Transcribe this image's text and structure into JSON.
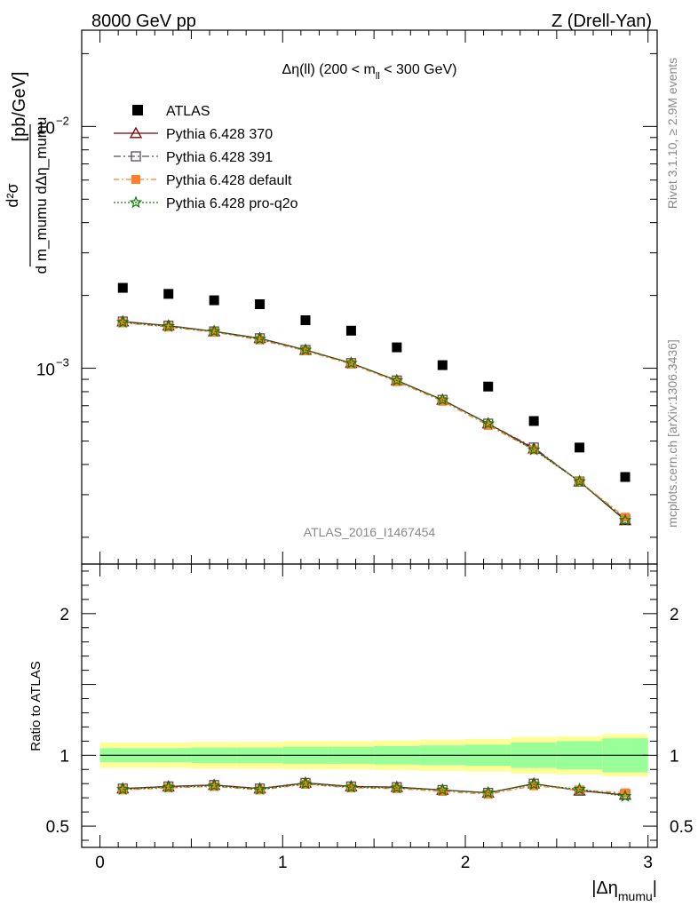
{
  "header": {
    "left": "8000 GeV pp",
    "right": "Z (Drell-Yan)"
  },
  "plot_title": {
    "prefix": "Δη(ll) (200 < m",
    "subscript": "ll",
    "suffix": " < 300 GeV)"
  },
  "side_labels": {
    "rivet": "Rivet 3.1.10, ≥ 2.9M events",
    "mcplots": "mcplots.cern.ch [arXiv:1306.3436]"
  },
  "watermark": "ATLAS_2016_I1467454",
  "y_axis_main": {
    "unit": "[pb/GeV]",
    "numerator": "d²σ",
    "denominator": "d m_mumu dΔη_mumu"
  },
  "y_axis_ratio": {
    "label": "Ratio to ATLAS"
  },
  "x_axis": {
    "label_prefix": "|Δη",
    "label_sub": "mumu",
    "label_suffix": "|"
  },
  "colors": {
    "atlas": "#000000",
    "p370": "#800000",
    "p391": "#604a5a",
    "pdefault": "#ff7f2a",
    "pq2o": "#008000",
    "band_outer": "#ffff99",
    "band_inner": "#99ff99"
  },
  "chart_data": [
    {
      "type": "scatter",
      "panel": "main",
      "x": [
        0.125,
        0.375,
        0.625,
        0.875,
        1.125,
        1.375,
        1.625,
        1.875,
        2.125,
        2.375,
        2.625,
        2.875
      ],
      "xlim": [
        -0.1,
        3.05
      ],
      "ylim": [
        0.000155,
        0.025
      ],
      "yscale": "log",
      "y_ticks": [
        {
          "mantissa": "10",
          "exp": "−3",
          "value": 0.001
        },
        {
          "mantissa": "10",
          "exp": "−2",
          "value": 0.01
        }
      ],
      "series": [
        {
          "name": "ATLAS",
          "key": "atlas",
          "marker": "square-filled",
          "values": [
            0.00215,
            0.00203,
            0.00191,
            0.00184,
            0.00158,
            0.00143,
            0.00122,
            0.00103,
            0.00084,
            0.000605,
            0.00047,
            0.000355
          ]
        },
        {
          "name": "Pythia 6.428 370",
          "key": "p370",
          "marker": "triangle-open",
          "dash": "",
          "values": [
            0.00156,
            0.0015,
            0.00142,
            0.00133,
            0.00119,
            0.00105,
            0.00089,
            0.00074,
            0.00059,
            0.000465,
            0.00034,
            0.000235
          ]
        },
        {
          "name": "Pythia 6.428 391",
          "key": "p391",
          "marker": "square-open",
          "dash": "8,3,2,3",
          "values": [
            0.00156,
            0.0015,
            0.00142,
            0.00133,
            0.00119,
            0.00105,
            0.00089,
            0.00074,
            0.00059,
            0.00047,
            0.00034,
            0.000238
          ]
        },
        {
          "name": "Pythia 6.428 default",
          "key": "pdefault",
          "marker": "square-filled",
          "dash": "6,3,2,3",
          "values": [
            0.00154,
            0.00148,
            0.00141,
            0.00131,
            0.00118,
            0.00104,
            0.00088,
            0.00073,
            0.00058,
            0.00046,
            0.00034,
            0.000242
          ]
        },
        {
          "name": "Pythia 6.428 pro-q2o",
          "key": "pq2o",
          "marker": "star",
          "dash": "2,2",
          "values": [
            0.00155,
            0.00149,
            0.00142,
            0.00132,
            0.00119,
            0.00105,
            0.00089,
            0.00074,
            0.00059,
            0.00046,
            0.00034,
            0.000235
          ]
        }
      ]
    },
    {
      "type": "line",
      "panel": "ratio",
      "xlim": [
        -0.1,
        3.05
      ],
      "ylim": [
        0.35,
        2.35
      ],
      "x_ticks": [
        0,
        1,
        2,
        3
      ],
      "y_ticks": [
        0.5,
        1,
        2
      ],
      "band_edges": [
        0.0,
        0.25,
        0.5,
        0.75,
        1.0,
        1.25,
        1.5,
        1.75,
        2.0,
        2.25,
        2.5,
        2.75,
        3.0
      ],
      "band_outer": [
        0.09,
        0.09,
        0.095,
        0.095,
        0.1,
        0.1,
        0.105,
        0.11,
        0.115,
        0.13,
        0.135,
        0.15
      ],
      "band_inner": [
        0.05,
        0.05,
        0.055,
        0.055,
        0.06,
        0.06,
        0.065,
        0.07,
        0.075,
        0.09,
        0.1,
        0.12
      ],
      "series": [
        {
          "key": "p370",
          "marker": "triangle-open",
          "dash": "",
          "values": [
            0.765,
            0.78,
            0.79,
            0.765,
            0.805,
            0.78,
            0.775,
            0.755,
            0.735,
            0.8,
            0.75,
            0.72
          ]
        },
        {
          "key": "p391",
          "marker": "square-open",
          "dash": "8,3,2,3",
          "values": [
            0.765,
            0.78,
            0.79,
            0.765,
            0.805,
            0.78,
            0.775,
            0.755,
            0.735,
            0.8,
            0.75,
            0.725
          ]
        },
        {
          "key": "pdefault",
          "marker": "square-filled",
          "dash": "6,3,2,3",
          "values": [
            0.755,
            0.77,
            0.78,
            0.755,
            0.795,
            0.77,
            0.765,
            0.745,
            0.725,
            0.785,
            0.755,
            0.735
          ]
        },
        {
          "key": "pq2o",
          "marker": "star",
          "dash": "2,2",
          "values": [
            0.76,
            0.775,
            0.785,
            0.76,
            0.8,
            0.775,
            0.77,
            0.755,
            0.735,
            0.795,
            0.76,
            0.71
          ]
        }
      ]
    }
  ]
}
